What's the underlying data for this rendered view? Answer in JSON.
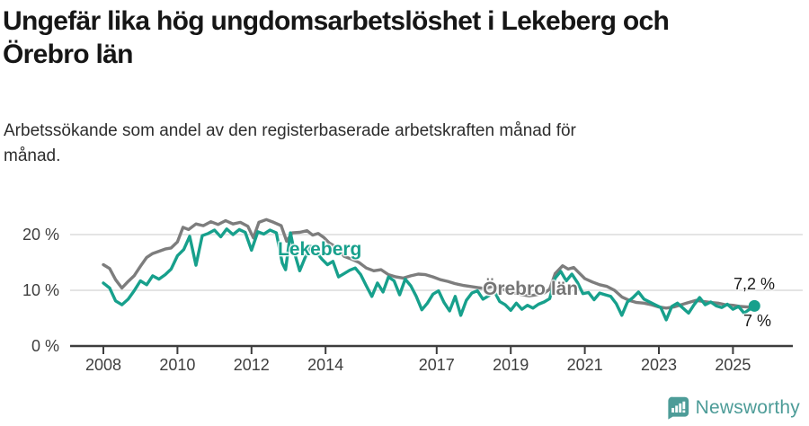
{
  "header": {
    "title_lines": [
      "Ungefär lika hög ungdomsarbetslöshet i Lekeberg och",
      "Örebro län"
    ],
    "subtitle_lines": [
      "Arbetssökande som andel av den registerbaserade arbetskraften månad för",
      "månad."
    ]
  },
  "chart_data": {
    "type": "line",
    "title": "Ungefär lika hög ungdomsarbetslöshet i Lekeberg och Örebro län",
    "subtitle": "Arbetssökande som andel av den registerbaserade arbetskraften månad för månad.",
    "xlabel": "",
    "ylabel": "",
    "x_unit": "decimal-year (monthly data 2008–mid 2025)",
    "ylim": [
      0,
      25
    ],
    "xlim": [
      2007.2,
      2026
    ],
    "grid": "horizontal",
    "legend_position": "inline-labels",
    "colors": {
      "axis": "#3d3d3d",
      "gridline": "#dcdcdc",
      "tick_label": "#3e3e3e",
      "end_label": "#1a1a1a"
    },
    "y_ticks": [
      {
        "value": 0,
        "label": "0 %"
      },
      {
        "value": 10,
        "label": "10 %"
      },
      {
        "value": 20,
        "label": "20 %"
      }
    ],
    "x_ticks": [
      {
        "value": 2008,
        "label": "2008"
      },
      {
        "value": 2010,
        "label": "2010"
      },
      {
        "value": 2012,
        "label": "2012"
      },
      {
        "value": 2014,
        "label": "2014"
      },
      {
        "value": 2017,
        "label": "2017"
      },
      {
        "value": 2019,
        "label": "2019"
      },
      {
        "value": 2021,
        "label": "2021"
      },
      {
        "value": 2023,
        "label": "2023"
      },
      {
        "value": 2025,
        "label": "2025"
      }
    ],
    "series": [
      {
        "name": "Örebro län",
        "color": "#7d7d7d",
        "label_color": "#757575",
        "end_value": 7.0,
        "end_dot": false,
        "points": [
          [
            2008.0,
            14.6
          ],
          [
            2008.17,
            13.9
          ],
          [
            2008.33,
            11.9
          ],
          [
            2008.5,
            10.4
          ],
          [
            2008.67,
            11.6
          ],
          [
            2008.83,
            12.6
          ],
          [
            2009.0,
            14.3
          ],
          [
            2009.17,
            15.9
          ],
          [
            2009.33,
            16.6
          ],
          [
            2009.5,
            17.0
          ],
          [
            2009.67,
            17.4
          ],
          [
            2009.83,
            17.6
          ],
          [
            2010.0,
            18.7
          ],
          [
            2010.15,
            21.3
          ],
          [
            2010.3,
            20.9
          ],
          [
            2010.5,
            21.9
          ],
          [
            2010.7,
            21.6
          ],
          [
            2010.9,
            22.3
          ],
          [
            2011.1,
            21.8
          ],
          [
            2011.3,
            22.5
          ],
          [
            2011.5,
            21.9
          ],
          [
            2011.7,
            22.2
          ],
          [
            2011.9,
            21.5
          ],
          [
            2012.05,
            19.4
          ],
          [
            2012.2,
            22.2
          ],
          [
            2012.4,
            22.7
          ],
          [
            2012.6,
            22.2
          ],
          [
            2012.8,
            21.6
          ],
          [
            2012.95,
            18.8
          ],
          [
            2013.1,
            20.3
          ],
          [
            2013.3,
            20.4
          ],
          [
            2013.5,
            20.7
          ],
          [
            2013.65,
            19.9
          ],
          [
            2013.8,
            20.2
          ],
          [
            2013.95,
            19.5
          ],
          [
            2014.1,
            18.5
          ],
          [
            2014.3,
            17.7
          ],
          [
            2014.5,
            16.1
          ],
          [
            2014.7,
            15.6
          ],
          [
            2014.9,
            15.0
          ],
          [
            2015.1,
            14.0
          ],
          [
            2015.3,
            13.5
          ],
          [
            2015.5,
            13.7
          ],
          [
            2015.7,
            12.8
          ],
          [
            2015.9,
            12.4
          ],
          [
            2016.1,
            12.2
          ],
          [
            2016.3,
            12.6
          ],
          [
            2016.5,
            12.9
          ],
          [
            2016.7,
            12.8
          ],
          [
            2016.9,
            12.4
          ],
          [
            2017.1,
            11.9
          ],
          [
            2017.3,
            11.6
          ],
          [
            2017.5,
            11.2
          ],
          [
            2017.7,
            10.9
          ],
          [
            2017.9,
            10.7
          ],
          [
            2018.1,
            10.5
          ],
          [
            2018.3,
            10.3
          ],
          [
            2018.5,
            10.7
          ],
          [
            2018.7,
            10.4
          ],
          [
            2018.9,
            9.9
          ],
          [
            2019.1,
            9.5
          ],
          [
            2019.3,
            9.2
          ],
          [
            2019.5,
            9.0
          ],
          [
            2019.7,
            9.2
          ],
          [
            2019.9,
            9.5
          ],
          [
            2020.05,
            10.2
          ],
          [
            2020.2,
            13.0
          ],
          [
            2020.4,
            14.4
          ],
          [
            2020.55,
            13.8
          ],
          [
            2020.7,
            14.1
          ],
          [
            2020.85,
            13.1
          ],
          [
            2021.0,
            12.1
          ],
          [
            2021.2,
            11.5
          ],
          [
            2021.4,
            11.0
          ],
          [
            2021.6,
            10.7
          ],
          [
            2021.8,
            10.0
          ],
          [
            2022.0,
            8.8
          ],
          [
            2022.2,
            8.2
          ],
          [
            2022.4,
            7.8
          ],
          [
            2022.6,
            7.7
          ],
          [
            2022.8,
            7.4
          ],
          [
            2023.0,
            7.0
          ],
          [
            2023.2,
            6.8
          ],
          [
            2023.4,
            7.0
          ],
          [
            2023.6,
            7.4
          ],
          [
            2023.8,
            7.8
          ],
          [
            2024.0,
            8.2
          ],
          [
            2024.2,
            8.0
          ],
          [
            2024.4,
            7.8
          ],
          [
            2024.6,
            7.7
          ],
          [
            2024.8,
            7.4
          ],
          [
            2025.0,
            7.3
          ],
          [
            2025.2,
            7.1
          ],
          [
            2025.4,
            7.0
          ],
          [
            2025.58,
            7.0
          ]
        ]
      },
      {
        "name": "Lekeberg",
        "color": "#17a08c",
        "label_color": "#17a08c",
        "end_value": 7.2,
        "end_dot": true,
        "points": [
          [
            2008.0,
            11.3
          ],
          [
            2008.17,
            10.4
          ],
          [
            2008.33,
            8.1
          ],
          [
            2008.5,
            7.4
          ],
          [
            2008.67,
            8.4
          ],
          [
            2008.83,
            9.9
          ],
          [
            2009.0,
            11.7
          ],
          [
            2009.17,
            11.0
          ],
          [
            2009.33,
            12.6
          ],
          [
            2009.5,
            12.0
          ],
          [
            2009.67,
            12.8
          ],
          [
            2009.83,
            13.8
          ],
          [
            2010.0,
            16.2
          ],
          [
            2010.17,
            17.3
          ],
          [
            2010.33,
            19.7
          ],
          [
            2010.5,
            14.5
          ],
          [
            2010.67,
            19.8
          ],
          [
            2010.83,
            20.2
          ],
          [
            2011.0,
            20.8
          ],
          [
            2011.17,
            19.6
          ],
          [
            2011.33,
            21.0
          ],
          [
            2011.5,
            20.0
          ],
          [
            2011.67,
            20.9
          ],
          [
            2011.83,
            20.4
          ],
          [
            2012.0,
            17.2
          ],
          [
            2012.17,
            20.5
          ],
          [
            2012.33,
            20.1
          ],
          [
            2012.5,
            20.8
          ],
          [
            2012.67,
            20.3
          ],
          [
            2012.83,
            14.9
          ],
          [
            2012.92,
            13.7
          ],
          [
            2013.05,
            20.3
          ],
          [
            2013.17,
            16.5
          ],
          [
            2013.3,
            13.5
          ],
          [
            2013.45,
            15.9
          ],
          [
            2013.6,
            17.9
          ],
          [
            2013.75,
            16.9
          ],
          [
            2013.9,
            15.6
          ],
          [
            2014.05,
            14.6
          ],
          [
            2014.2,
            15.2
          ],
          [
            2014.35,
            12.4
          ],
          [
            2014.5,
            13.0
          ],
          [
            2014.65,
            13.6
          ],
          [
            2014.8,
            14.0
          ],
          [
            2014.95,
            12.8
          ],
          [
            2015.1,
            10.8
          ],
          [
            2015.25,
            8.9
          ],
          [
            2015.4,
            11.3
          ],
          [
            2015.55,
            9.7
          ],
          [
            2015.7,
            12.4
          ],
          [
            2015.85,
            11.7
          ],
          [
            2016.0,
            9.2
          ],
          [
            2016.15,
            12.0
          ],
          [
            2016.3,
            10.8
          ],
          [
            2016.45,
            8.9
          ],
          [
            2016.6,
            6.5
          ],
          [
            2016.75,
            7.7
          ],
          [
            2016.9,
            9.3
          ],
          [
            2017.05,
            9.9
          ],
          [
            2017.2,
            7.8
          ],
          [
            2017.35,
            6.3
          ],
          [
            2017.5,
            8.9
          ],
          [
            2017.65,
            5.5
          ],
          [
            2017.8,
            8.2
          ],
          [
            2017.95,
            9.5
          ],
          [
            2018.1,
            9.9
          ],
          [
            2018.25,
            8.4
          ],
          [
            2018.4,
            9.0
          ],
          [
            2018.55,
            9.9
          ],
          [
            2018.7,
            8.0
          ],
          [
            2018.85,
            7.4
          ],
          [
            2019.0,
            6.4
          ],
          [
            2019.15,
            7.7
          ],
          [
            2019.3,
            6.6
          ],
          [
            2019.45,
            7.3
          ],
          [
            2019.6,
            6.8
          ],
          [
            2019.75,
            7.5
          ],
          [
            2019.9,
            7.9
          ],
          [
            2020.05,
            8.5
          ],
          [
            2020.2,
            12.2
          ],
          [
            2020.35,
            13.4
          ],
          [
            2020.5,
            11.7
          ],
          [
            2020.65,
            12.9
          ],
          [
            2020.8,
            11.4
          ],
          [
            2020.95,
            9.4
          ],
          [
            2021.1,
            9.6
          ],
          [
            2021.25,
            8.3
          ],
          [
            2021.4,
            9.5
          ],
          [
            2021.55,
            9.2
          ],
          [
            2021.7,
            8.9
          ],
          [
            2021.85,
            7.6
          ],
          [
            2022.0,
            5.5
          ],
          [
            2022.15,
            7.9
          ],
          [
            2022.3,
            8.7
          ],
          [
            2022.45,
            9.7
          ],
          [
            2022.6,
            8.4
          ],
          [
            2022.75,
            7.9
          ],
          [
            2022.9,
            7.4
          ],
          [
            2023.05,
            6.9
          ],
          [
            2023.2,
            4.7
          ],
          [
            2023.35,
            7.1
          ],
          [
            2023.5,
            7.7
          ],
          [
            2023.65,
            6.8
          ],
          [
            2023.8,
            5.9
          ],
          [
            2023.95,
            7.4
          ],
          [
            2024.1,
            8.7
          ],
          [
            2024.25,
            7.4
          ],
          [
            2024.4,
            7.9
          ],
          [
            2024.55,
            7.2
          ],
          [
            2024.7,
            6.9
          ],
          [
            2024.85,
            7.5
          ],
          [
            2025.0,
            6.6
          ],
          [
            2025.15,
            7.1
          ],
          [
            2025.3,
            5.9
          ],
          [
            2025.45,
            6.6
          ],
          [
            2025.58,
            7.2
          ]
        ]
      }
    ],
    "end_labels": [
      {
        "text": "7,2 %",
        "series": "Lekeberg",
        "value": 7.2
      },
      {
        "text": "7 %",
        "series": "Örebro län",
        "value": 7.0
      }
    ]
  },
  "footer": {
    "brand": "Newsworthy",
    "brand_color": "#4d9c98",
    "logo_icon": "newsworthy-chart-bubble-icon"
  }
}
